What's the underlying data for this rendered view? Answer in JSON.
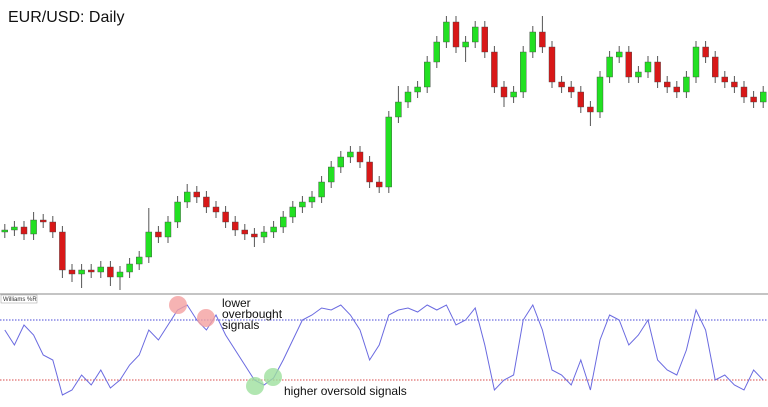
{
  "chart_data": [
    {
      "type": "candlestick",
      "title": "EUR/USD: Daily",
      "ylim": [
        0,
        292
      ],
      "up_color": "#22e022",
      "down_color": "#d81818",
      "open": [
        60,
        62,
        65,
        58,
        72,
        70,
        60,
        22,
        18,
        22,
        20,
        25,
        15,
        20,
        28,
        35,
        60,
        55,
        70,
        90,
        100,
        95,
        85,
        80,
        70,
        62,
        58,
        55,
        60,
        65,
        75,
        85,
        90,
        95,
        110,
        125,
        135,
        140,
        130,
        110,
        105,
        175,
        190,
        200,
        205,
        230,
        250,
        270,
        245,
        250,
        265,
        240,
        205,
        195,
        200,
        240,
        260,
        245,
        210,
        205,
        200,
        185,
        180,
        215,
        235,
        240,
        215,
        220,
        230,
        210,
        205,
        200,
        215,
        245,
        235,
        215,
        210,
        205,
        195,
        190
      ],
      "high": [
        68,
        71,
        71,
        80,
        78,
        76,
        66,
        28,
        28,
        28,
        31,
        31,
        26,
        34,
        41,
        84,
        66,
        76,
        96,
        108,
        106,
        101,
        91,
        86,
        76,
        68,
        64,
        66,
        71,
        81,
        91,
        96,
        101,
        116,
        131,
        141,
        146,
        146,
        136,
        116,
        181,
        206,
        206,
        211,
        236,
        256,
        276,
        276,
        256,
        271,
        271,
        246,
        211,
        206,
        246,
        266,
        276,
        251,
        216,
        211,
        206,
        191,
        221,
        241,
        246,
        246,
        226,
        236,
        236,
        216,
        211,
        221,
        251,
        251,
        241,
        221,
        216,
        211,
        201,
        206
      ],
      "low": [
        54,
        56,
        52,
        52,
        64,
        54,
        14,
        10,
        4,
        14,
        14,
        6,
        2,
        14,
        22,
        29,
        49,
        49,
        64,
        84,
        89,
        79,
        74,
        64,
        56,
        52,
        45,
        49,
        54,
        59,
        69,
        79,
        84,
        89,
        104,
        119,
        129,
        124,
        104,
        99,
        99,
        169,
        184,
        194,
        199,
        224,
        244,
        239,
        230,
        244,
        234,
        199,
        185,
        189,
        194,
        234,
        239,
        204,
        199,
        194,
        179,
        166,
        174,
        209,
        229,
        209,
        209,
        214,
        204,
        199,
        194,
        194,
        209,
        229,
        209,
        204,
        199,
        189,
        184,
        184
      ],
      "close": [
        62,
        65,
        58,
        72,
        70,
        60,
        22,
        18,
        22,
        20,
        25,
        15,
        20,
        28,
        35,
        60,
        55,
        70,
        90,
        100,
        95,
        85,
        80,
        70,
        62,
        58,
        55,
        60,
        65,
        75,
        85,
        90,
        95,
        110,
        125,
        135,
        140,
        130,
        110,
        105,
        175,
        190,
        200,
        205,
        230,
        250,
        270,
        245,
        250,
        265,
        240,
        205,
        195,
        200,
        240,
        260,
        245,
        210,
        205,
        200,
        185,
        180,
        215,
        235,
        240,
        215,
        220,
        230,
        210,
        205,
        200,
        215,
        245,
        235,
        215,
        210,
        205,
        195,
        190,
        200
      ]
    },
    {
      "type": "line",
      "title": "Williams %R",
      "ylim": [
        -100,
        0
      ],
      "color": "#6a6ae0",
      "yticks": [
        -20,
        -80
      ],
      "tick_colors": [
        "#4a4ad8",
        "#d84a4a"
      ],
      "values": [
        -30,
        -45,
        -25,
        -35,
        -55,
        -60,
        -95,
        -90,
        -75,
        -85,
        -70,
        -88,
        -80,
        -65,
        -55,
        -30,
        -40,
        -25,
        -10,
        -5,
        -20,
        -30,
        -15,
        -35,
        -50,
        -65,
        -80,
        -85,
        -78,
        -60,
        -40,
        -20,
        -15,
        -8,
        -10,
        -5,
        -15,
        -30,
        -60,
        -45,
        -15,
        -10,
        -8,
        -12,
        -5,
        -10,
        -5,
        -25,
        -20,
        -8,
        -45,
        -90,
        -80,
        -75,
        -20,
        -5,
        -30,
        -70,
        -75,
        -85,
        -60,
        -90,
        -40,
        -15,
        -20,
        -45,
        -35,
        -20,
        -60,
        -70,
        -75,
        -50,
        -10,
        -30,
        -80,
        -75,
        -85,
        -90,
        -70,
        -80
      ]
    }
  ],
  "annotations": [
    "lower overbought signals",
    "higher oversold signals"
  ]
}
